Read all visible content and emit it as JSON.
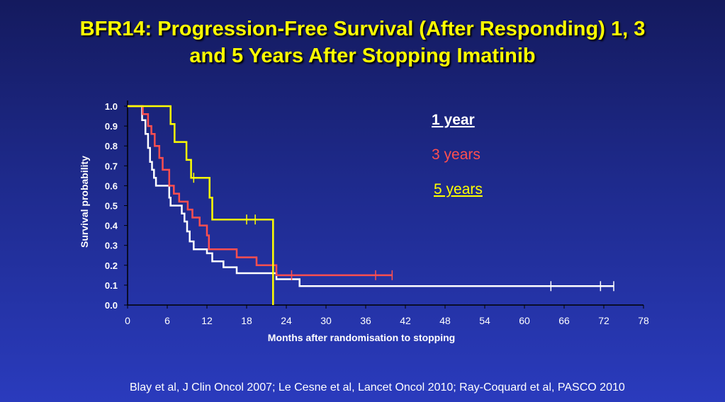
{
  "slide": {
    "title_line1": "BFR14: Progression-Free Survival (After Responding) 1, 3",
    "title_line2": "and 5 Years After Stopping Imatinib",
    "citation": "Blay et al, J Clin Oncol 2007; Le Cesne et al, Lancet Oncol 2010; Ray-Coquard et al, PASCO 2010",
    "colors": {
      "title": "#ffff00",
      "background": "#1e2a8c",
      "text": "#ffffff"
    }
  },
  "chart_data": {
    "type": "line",
    "subtype": "kaplan-meier-step",
    "xlabel": "Months after randomisation to stopping",
    "ylabel": "Survival probability",
    "xlim": [
      0,
      78
    ],
    "ylim": [
      0,
      1.0
    ],
    "xticks": [
      "0",
      "6",
      "12",
      "18",
      "24",
      "30",
      "36",
      "42",
      "48",
      "54",
      "60",
      "66",
      "72",
      "78"
    ],
    "yticks": [
      "0.0",
      "0.1",
      "0.2",
      "0.3",
      "0.4",
      "0.5",
      "0.6",
      "0.7",
      "0.8",
      "0.9",
      "1.0"
    ],
    "grid": false,
    "legend_position": "top-right",
    "series": [
      {
        "name": "1 year",
        "color": "#ffffff",
        "underline": true,
        "points": [
          [
            0,
            1.0
          ],
          [
            2.2,
            1.0
          ],
          [
            2.2,
            0.93
          ],
          [
            2.7,
            0.93
          ],
          [
            2.7,
            0.86
          ],
          [
            3.1,
            0.86
          ],
          [
            3.1,
            0.79
          ],
          [
            3.4,
            0.79
          ],
          [
            3.4,
            0.72
          ],
          [
            3.7,
            0.72
          ],
          [
            3.7,
            0.68
          ],
          [
            4.0,
            0.68
          ],
          [
            4.0,
            0.64
          ],
          [
            4.3,
            0.64
          ],
          [
            4.3,
            0.6
          ],
          [
            6.3,
            0.6
          ],
          [
            6.3,
            0.54
          ],
          [
            6.5,
            0.54
          ],
          [
            6.5,
            0.5
          ],
          [
            8.2,
            0.5
          ],
          [
            8.2,
            0.46
          ],
          [
            8.6,
            0.46
          ],
          [
            8.6,
            0.42
          ],
          [
            9.0,
            0.42
          ],
          [
            9.0,
            0.37
          ],
          [
            9.4,
            0.37
          ],
          [
            9.4,
            0.32
          ],
          [
            10.0,
            0.32
          ],
          [
            10.0,
            0.28
          ],
          [
            12.0,
            0.28
          ],
          [
            12.0,
            0.26
          ],
          [
            12.8,
            0.26
          ],
          [
            12.8,
            0.22
          ],
          [
            14.5,
            0.22
          ],
          [
            14.5,
            0.19
          ],
          [
            16.5,
            0.19
          ],
          [
            16.5,
            0.16
          ],
          [
            22.5,
            0.16
          ],
          [
            22.5,
            0.13
          ],
          [
            26.0,
            0.13
          ],
          [
            26.0,
            0.095
          ],
          [
            73.5,
            0.095
          ]
        ],
        "censors": [
          [
            64,
            0.095
          ],
          [
            71.5,
            0.095
          ],
          [
            73.5,
            0.095
          ]
        ]
      },
      {
        "name": "3 years",
        "color": "#ff4f4f",
        "underline": false,
        "points": [
          [
            0,
            1.0
          ],
          [
            2.3,
            1.0
          ],
          [
            2.3,
            0.96
          ],
          [
            3.1,
            0.96
          ],
          [
            3.1,
            0.9
          ],
          [
            3.6,
            0.9
          ],
          [
            3.6,
            0.86
          ],
          [
            4.1,
            0.86
          ],
          [
            4.1,
            0.8
          ],
          [
            4.8,
            0.8
          ],
          [
            4.8,
            0.74
          ],
          [
            5.3,
            0.74
          ],
          [
            5.3,
            0.68
          ],
          [
            6.3,
            0.68
          ],
          [
            6.3,
            0.6
          ],
          [
            7.0,
            0.6
          ],
          [
            7.0,
            0.56
          ],
          [
            7.8,
            0.56
          ],
          [
            7.8,
            0.52
          ],
          [
            9.1,
            0.52
          ],
          [
            9.1,
            0.48
          ],
          [
            9.8,
            0.48
          ],
          [
            9.8,
            0.44
          ],
          [
            10.9,
            0.44
          ],
          [
            10.9,
            0.4
          ],
          [
            12.0,
            0.4
          ],
          [
            12.0,
            0.35
          ],
          [
            12.3,
            0.35
          ],
          [
            12.3,
            0.28
          ],
          [
            16.5,
            0.28
          ],
          [
            16.5,
            0.24
          ],
          [
            19.5,
            0.24
          ],
          [
            19.5,
            0.2
          ],
          [
            22.5,
            0.2
          ],
          [
            22.5,
            0.15
          ],
          [
            40.0,
            0.15
          ]
        ],
        "censors": [
          [
            24.8,
            0.15
          ],
          [
            37.5,
            0.15
          ],
          [
            40.0,
            0.15
          ]
        ]
      },
      {
        "name": "5 years",
        "color": "#ffff00",
        "underline": true,
        "points": [
          [
            0,
            1.0
          ],
          [
            6.5,
            1.0
          ],
          [
            6.5,
            0.91
          ],
          [
            7.1,
            0.91
          ],
          [
            7.1,
            0.82
          ],
          [
            8.9,
            0.82
          ],
          [
            8.9,
            0.73
          ],
          [
            9.6,
            0.73
          ],
          [
            9.6,
            0.64
          ],
          [
            12.4,
            0.64
          ],
          [
            12.4,
            0.54
          ],
          [
            12.8,
            0.54
          ],
          [
            12.8,
            0.43
          ],
          [
            22.0,
            0.43
          ],
          [
            22.0,
            0.0
          ]
        ],
        "censors": [
          [
            10.0,
            0.64
          ],
          [
            18.0,
            0.43
          ],
          [
            19.3,
            0.43
          ]
        ]
      }
    ]
  }
}
